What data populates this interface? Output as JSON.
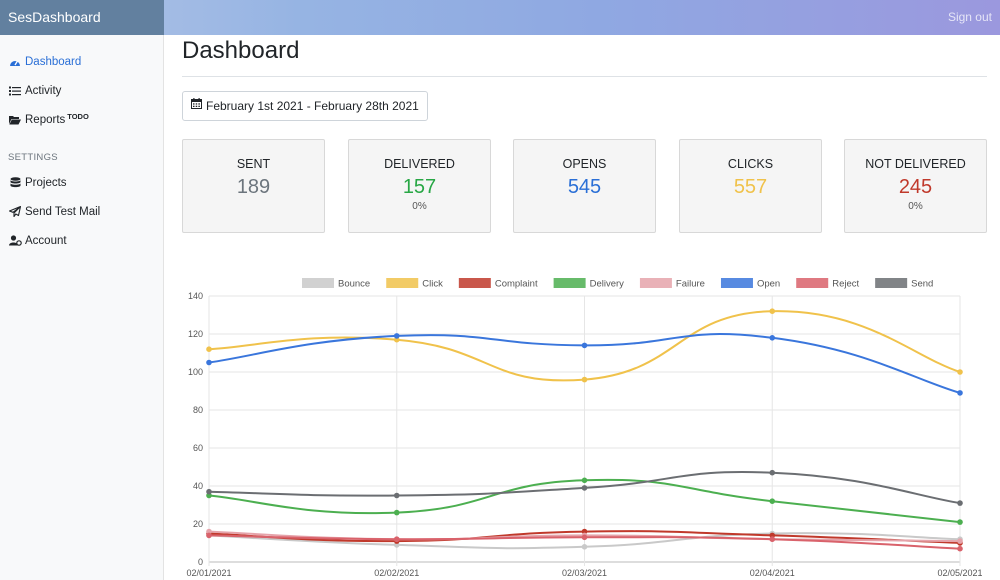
{
  "app": {
    "brand": "SesDashboard",
    "signout": "Sign out"
  },
  "sidebar": {
    "items": [
      {
        "label": "Dashboard",
        "icon": "gauge-icon"
      },
      {
        "label": "Activity",
        "icon": "list-icon"
      },
      {
        "label": "Reports",
        "sup": "TODO",
        "icon": "folder-open-icon"
      }
    ],
    "settings_heading": "SETTINGS",
    "settings_items": [
      {
        "label": "Projects",
        "icon": "database-icon"
      },
      {
        "label": "Send Test Mail",
        "icon": "paper-plane-icon"
      },
      {
        "label": "Account",
        "icon": "user-cog-icon"
      }
    ]
  },
  "main": {
    "title": "Dashboard",
    "date_range": "February 1st 2021 - February 28th 2021",
    "cards": [
      {
        "label": "SENT",
        "value": "189",
        "pct": "",
        "color": "#6c757d"
      },
      {
        "label": "DELIVERED",
        "value": "157",
        "pct": "0%",
        "color": "#28a745"
      },
      {
        "label": "OPENS",
        "value": "545",
        "pct": "",
        "color": "#2a6fd6"
      },
      {
        "label": "CLICKS",
        "value": "557",
        "pct": "",
        "color": "#f0c24b"
      },
      {
        "label": "NOT DELIVERED",
        "value": "245",
        "pct": "0%",
        "color": "#c0392b"
      }
    ]
  },
  "chart_data": {
    "type": "line",
    "x": [
      "02/01/2021",
      "02/02/2021",
      "02/03/2021",
      "02/04/2021",
      "02/05/2021"
    ],
    "ylim": [
      0,
      140
    ],
    "yticks": [
      0,
      20,
      40,
      60,
      80,
      100,
      120,
      140
    ],
    "grid": true,
    "legend": "top",
    "series": [
      {
        "name": "Bounce",
        "color": "#c9c9c9",
        "values": [
          14,
          9,
          8,
          15,
          12
        ]
      },
      {
        "name": "Click",
        "color": "#f0c24b",
        "values": [
          112,
          117,
          96,
          132,
          100
        ]
      },
      {
        "name": "Complaint",
        "color": "#c0392b",
        "values": [
          15,
          11,
          16,
          14,
          10
        ]
      },
      {
        "name": "Delivery",
        "color": "#4caf50",
        "values": [
          35,
          26,
          43,
          32,
          21
        ]
      },
      {
        "name": "Failure",
        "color": "#e5a3aa",
        "values": [
          16,
          12,
          14,
          12,
          11
        ]
      },
      {
        "name": "Open",
        "color": "#3a76dc",
        "values": [
          105,
          119,
          114,
          118,
          89
        ]
      },
      {
        "name": "Reject",
        "color": "#d9626b",
        "values": [
          14,
          12,
          13,
          12,
          7
        ]
      },
      {
        "name": "Send",
        "color": "#6b6e72",
        "values": [
          37,
          35,
          39,
          47,
          31
        ]
      }
    ]
  }
}
